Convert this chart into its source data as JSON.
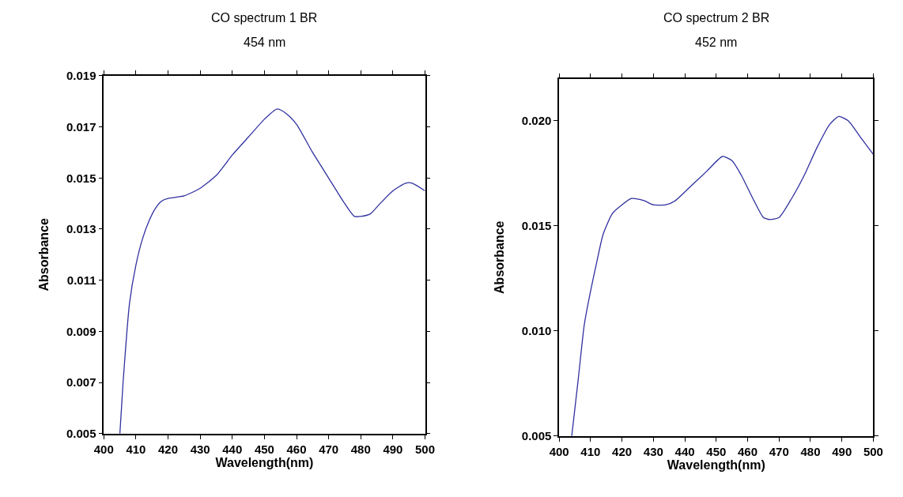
{
  "chart_data": [
    {
      "type": "line",
      "title": "CO spectrum 1 BR",
      "subtitle": "454 nm",
      "xlabel": "Wavelength(nm)",
      "ylabel": "Absorbance",
      "x": [
        405,
        406,
        408,
        410,
        412,
        414,
        416,
        418,
        420,
        425,
        430,
        435,
        440,
        445,
        450,
        454,
        457,
        460,
        465,
        470,
        475,
        478,
        480,
        483,
        486,
        490,
        494,
        496,
        500
      ],
      "series": [
        {
          "color": "#3030a0",
          "values": [
            0.005,
            0.007,
            0.0101,
            0.0116,
            0.0126,
            0.0133,
            0.0138,
            0.0141,
            0.0142,
            0.0143,
            0.0146,
            0.0151,
            0.0159,
            0.0166,
            0.0173,
            0.0177,
            0.0175,
            0.0171,
            0.016,
            0.015,
            0.014,
            0.0135,
            0.0135,
            0.0136,
            0.014,
            0.0145,
            0.0148,
            0.0148,
            0.0145
          ]
        }
      ],
      "xlim": [
        400,
        500
      ],
      "ylim": [
        0.005,
        0.019
      ],
      "xticks": [
        400,
        410,
        420,
        430,
        440,
        450,
        460,
        470,
        480,
        490,
        500
      ],
      "yticks": [
        0.005,
        0.007,
        0.009,
        0.011,
        0.013,
        0.015,
        0.017,
        0.019
      ]
    },
    {
      "type": "line",
      "title": "CO spectrum 2 BR",
      "subtitle": "452 nm",
      "xlabel": "Wavelength(nm)",
      "ylabel": "Absorbance",
      "x": [
        404,
        406,
        408,
        410,
        412,
        414,
        417,
        420,
        423,
        427,
        430,
        434,
        437,
        442,
        447,
        452,
        455,
        458,
        462,
        465,
        467,
        470,
        474,
        478,
        482,
        486,
        489,
        492,
        496,
        500
      ],
      "series": [
        {
          "color": "#3030a0",
          "values": [
            0.005,
            0.0076,
            0.0103,
            0.0119,
            0.0133,
            0.0146,
            0.0156,
            0.016,
            0.0163,
            0.0162,
            0.016,
            0.016,
            0.0162,
            0.0169,
            0.0176,
            0.0183,
            0.0181,
            0.0174,
            0.0162,
            0.0154,
            0.0153,
            0.0154,
            0.0163,
            0.0174,
            0.0187,
            0.0198,
            0.0202,
            0.02,
            0.0192,
            0.0184
          ]
        }
      ],
      "xlim": [
        400,
        500
      ],
      "ylim": [
        0.005,
        0.022
      ],
      "xticks": [
        400,
        410,
        420,
        430,
        440,
        450,
        460,
        470,
        480,
        490,
        500
      ],
      "yticks": [
        {
          "value": 0.005,
          "label": "0.005"
        },
        {
          "value": 0.01,
          "label": "0.010"
        },
        {
          "value": 0.015,
          "label": "0.015"
        },
        {
          "value": 0.02,
          "label": "0.020"
        }
      ]
    }
  ]
}
